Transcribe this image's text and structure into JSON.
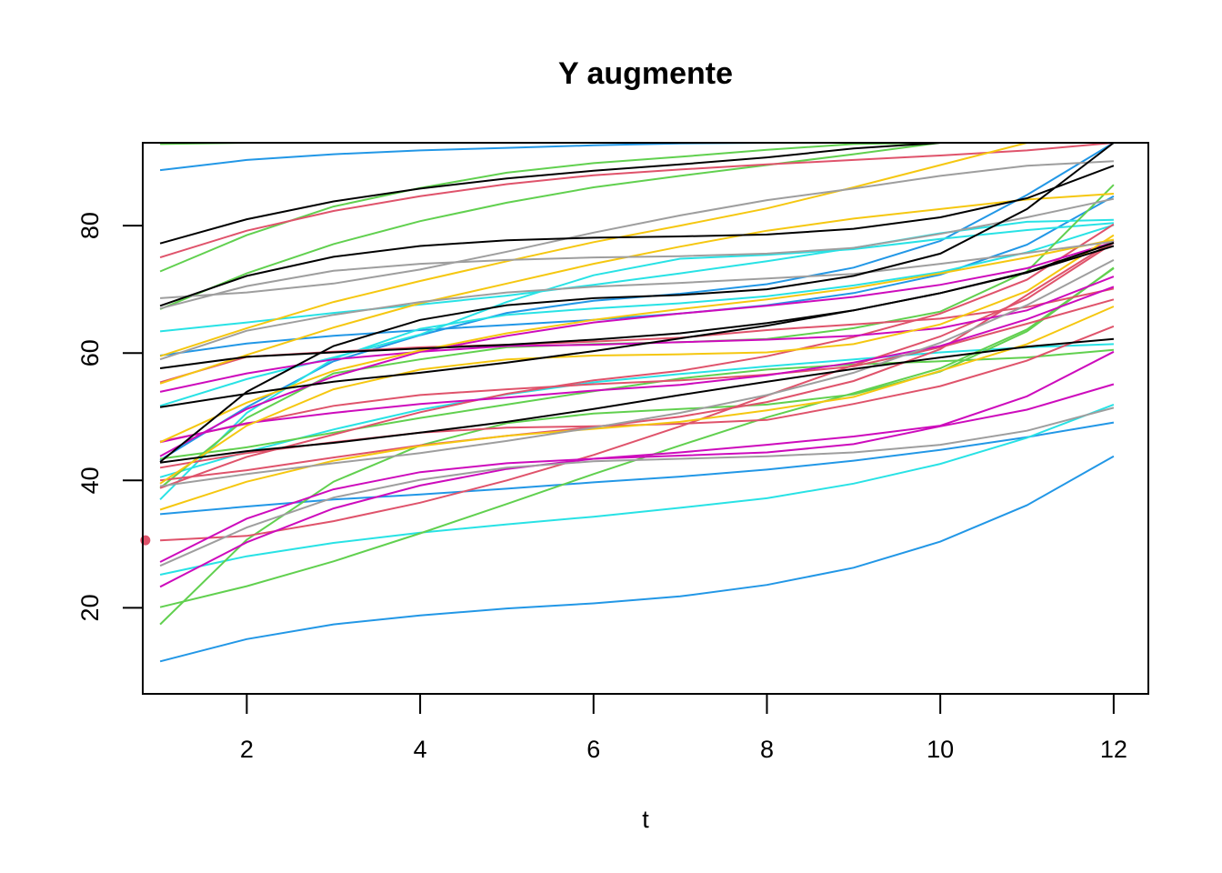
{
  "chart_data": {
    "type": "line",
    "title": "Y augmente",
    "xlabel": "t",
    "ylabel": "",
    "xlim": [
      0.8,
      12.4
    ],
    "ylim": [
      6.5,
      93
    ],
    "x": [
      1,
      2,
      3,
      4,
      5,
      6,
      7,
      8,
      9,
      10,
      11,
      12
    ],
    "x_ticks": [
      2,
      4,
      6,
      8,
      10,
      12
    ],
    "y_ticks": [
      20,
      40,
      60,
      80
    ],
    "grid": false,
    "legend": "none",
    "series": [
      {
        "color": "#2297E6",
        "values": [
          11.6,
          15.1,
          17.4,
          18.8,
          19.9,
          20.7,
          21.8,
          23.6,
          26.3,
          30.4,
          36.1,
          43.8
        ]
      },
      {
        "color": "#2297E6",
        "values": [
          34.7,
          35.9,
          37.0,
          37.8,
          38.7,
          39.7,
          40.6,
          41.7,
          43.1,
          44.8,
          46.8,
          49.1
        ]
      },
      {
        "color": "#2297E6",
        "values": [
          88.7,
          90.3,
          91.2,
          91.8,
          92.2,
          92.6,
          92.9,
          93.0,
          93.0,
          93.0,
          93.0,
          93.0
        ]
      },
      {
        "color": "#2297E6",
        "values": [
          59.6,
          61.5,
          62.7,
          63.6,
          64.4,
          65.2,
          66.2,
          67.5,
          69.4,
          72.3,
          77.0,
          84.6
        ]
      },
      {
        "color": "#2297E6",
        "values": [
          43.2,
          51.5,
          58.7,
          62.8,
          66.3,
          68.2,
          69.3,
          70.8,
          73.4,
          77.6,
          84.8,
          93.0
        ]
      },
      {
        "color": "#28E2E5",
        "values": [
          25.2,
          28.1,
          30.2,
          31.8,
          33.1,
          34.3,
          35.7,
          37.2,
          39.5,
          42.6,
          46.7,
          51.9
        ]
      },
      {
        "color": "#28E2E5",
        "values": [
          40.5,
          44.5,
          48.0,
          51.1,
          53.5,
          55.4,
          56.7,
          57.9,
          59.0,
          60.1,
          60.9,
          61.4
        ]
      },
      {
        "color": "#28E2E5",
        "values": [
          63.4,
          64.8,
          66.3,
          67.6,
          69.0,
          70.7,
          72.5,
          74.4,
          76.5,
          78.8,
          80.6,
          80.9
        ]
      },
      {
        "color": "#28E2E5",
        "values": [
          37.0,
          50.6,
          59.1,
          63.8,
          66.0,
          67.0,
          67.8,
          68.9,
          70.6,
          72.7,
          75.8,
          80.1
        ]
      },
      {
        "color": "#28E2E5",
        "values": [
          51.7,
          55.9,
          59.3,
          62.9,
          68.0,
          72.2,
          74.8,
          75.4,
          76.3,
          77.9,
          79.3,
          80.4
        ]
      },
      {
        "color": "#61D04F",
        "values": [
          20.1,
          23.4,
          27.3,
          31.7,
          36.3,
          41.0,
          45.5,
          49.9,
          53.7,
          57.6,
          63.7,
          73.3
        ]
      },
      {
        "color": "#61D04F",
        "values": [
          17.4,
          30.7,
          39.8,
          45.5,
          49.0,
          50.5,
          51.2,
          51.9,
          53.5,
          57.1,
          63.4,
          73.4
        ]
      },
      {
        "color": "#61D04F",
        "values": [
          72.8,
          78.5,
          83.0,
          85.9,
          88.3,
          89.8,
          90.8,
          91.9,
          92.8,
          93.0,
          93.0,
          93.0
        ]
      },
      {
        "color": "#61D04F",
        "values": [
          66.9,
          72.5,
          77.1,
          80.7,
          83.6,
          86.0,
          87.8,
          89.5,
          91.2,
          93.0,
          93.0,
          93.0
        ]
      },
      {
        "color": "#61D04F",
        "values": [
          38.8,
          49.8,
          56.8,
          59.0,
          60.9,
          61.4,
          61.7,
          62.2,
          63.9,
          66.5,
          72.8,
          86.4
        ]
      },
      {
        "color": "#61D04F",
        "values": [
          92.8,
          93.0,
          93.0,
          93.0,
          93.0,
          93.0,
          93.0,
          93.0,
          93.0,
          93.0,
          93.0,
          93.0
        ]
      },
      {
        "color": "#61D04F",
        "values": [
          43.4,
          45.2,
          47.5,
          49.8,
          51.9,
          54.0,
          56.0,
          57.4,
          58.2,
          58.7,
          59.3,
          60.5
        ]
      },
      {
        "color": "#DF536B",
        "values": [
          30.6,
          31.3,
          33.6,
          36.5,
          40.0,
          44.0,
          48.5,
          53.3,
          58.1,
          62.6,
          68.5,
          77.3
        ]
      },
      {
        "color": "#DF536B",
        "values": [
          38.8,
          43.7,
          47.2,
          50.7,
          53.6,
          55.7,
          57.2,
          59.5,
          62.5,
          66.2,
          71.5,
          80.2
        ]
      },
      {
        "color": "#DF536B",
        "values": [
          75.0,
          79.2,
          82.3,
          84.6,
          86.5,
          87.9,
          88.8,
          89.6,
          90.3,
          91.0,
          91.8,
          93.0
        ]
      },
      {
        "color": "#DF536B",
        "values": [
          40.0,
          41.6,
          43.6,
          45.5,
          47.0,
          48.4,
          50.0,
          52.3,
          55.6,
          60.6,
          69.1,
          77.6
        ]
      },
      {
        "color": "#DF536B",
        "values": [
          46.1,
          48.9,
          51.7,
          53.4,
          54.3,
          55.1,
          55.7,
          56.6,
          57.9,
          60.9,
          64.6,
          68.4
        ]
      },
      {
        "color": "#DF536B",
        "values": [
          42.0,
          44.3,
          46.0,
          47.5,
          48.3,
          48.5,
          48.9,
          49.5,
          52.0,
          54.8,
          58.8,
          64.2
        ]
      },
      {
        "color": "#DF536B",
        "values": [
          55.4,
          59.4,
          60.2,
          60.9,
          61.3,
          61.8,
          62.4,
          63.6,
          64.5,
          65.4,
          67.2,
          70.1
        ]
      },
      {
        "color": "#CD0BBC",
        "values": [
          23.3,
          30.3,
          35.6,
          39.2,
          41.8,
          43.4,
          44.4,
          45.6,
          46.9,
          48.6,
          53.2,
          60.2
        ]
      },
      {
        "color": "#CD0BBC",
        "values": [
          27.2,
          34.0,
          38.6,
          41.3,
          42.7,
          43.4,
          43.9,
          44.4,
          45.7,
          48.5,
          51.1,
          55.1
        ]
      },
      {
        "color": "#CD0BBC",
        "values": [
          46.0,
          49.0,
          50.6,
          52.0,
          53.0,
          54.1,
          55.0,
          56.5,
          58.5,
          61.1,
          65.3,
          70.4
        ]
      },
      {
        "color": "#CD0BBC",
        "values": [
          43.8,
          51.2,
          56.3,
          60.2,
          62.7,
          64.8,
          66.2,
          67.4,
          68.8,
          70.7,
          73.3,
          77.4
        ]
      },
      {
        "color": "#CD0BBC",
        "values": [
          53.9,
          56.8,
          59.0,
          60.2,
          61.1,
          61.3,
          61.7,
          62.1,
          62.7,
          63.9,
          66.7,
          72.0
        ]
      },
      {
        "color": "#F5C710",
        "values": [
          35.4,
          39.8,
          43.1,
          45.4,
          47.0,
          48.1,
          49.2,
          51.0,
          53.1,
          57.2,
          61.4,
          67.3
        ]
      },
      {
        "color": "#F5C710",
        "values": [
          39.5,
          48.6,
          54.3,
          57.4,
          59.0,
          59.6,
          59.8,
          60.1,
          61.4,
          64.5,
          69.7,
          78.5
        ]
      },
      {
        "color": "#F5C710",
        "values": [
          46.0,
          52.2,
          57.2,
          60.4,
          63.1,
          65.2,
          66.9,
          68.4,
          70.2,
          72.5,
          75.0,
          77.8
        ]
      },
      {
        "color": "#F5C710",
        "values": [
          55.2,
          59.7,
          64.0,
          67.8,
          70.9,
          74.0,
          76.7,
          79.2,
          81.1,
          82.6,
          84.1,
          85.0
        ]
      },
      {
        "color": "#F5C710",
        "values": [
          59.5,
          63.9,
          68.0,
          71.3,
          74.4,
          77.4,
          80.0,
          82.7,
          86.0,
          89.5,
          93.0,
          93.0
        ]
      },
      {
        "color": "#9E9E9E",
        "values": [
          26.6,
          32.6,
          37.3,
          40.1,
          42.0,
          43.0,
          43.4,
          43.8,
          44.4,
          45.6,
          47.8,
          51.4
        ]
      },
      {
        "color": "#9E9E9E",
        "values": [
          39.1,
          41.0,
          42.7,
          44.3,
          46.2,
          48.3,
          50.6,
          53.4,
          56.9,
          61.6,
          67.5,
          74.6
        ]
      },
      {
        "color": "#9E9E9E",
        "values": [
          59.0,
          63.5,
          66.0,
          68.0,
          69.5,
          70.4,
          71.0,
          71.7,
          72.4,
          74.0,
          75.7,
          77.5
        ]
      },
      {
        "color": "#9E9E9E",
        "values": [
          68.6,
          69.5,
          70.9,
          73.1,
          75.9,
          78.9,
          81.6,
          84.0,
          85.8,
          87.8,
          89.4,
          90.1
        ]
      },
      {
        "color": "#9E9E9E",
        "values": [
          67.0,
          70.5,
          72.9,
          74.0,
          74.6,
          75.0,
          75.2,
          75.6,
          76.5,
          78.7,
          81.3,
          84.2
        ]
      },
      {
        "color": "#000000",
        "values": [
          51.5,
          53.6,
          55.5,
          56.9,
          58.5,
          60.3,
          62.3,
          64.3,
          66.7,
          69.4,
          72.7,
          77.3
        ]
      },
      {
        "color": "#000000",
        "values": [
          42.8,
          44.6,
          45.9,
          47.5,
          49.2,
          51.2,
          53.4,
          55.5,
          57.5,
          59.3,
          61.0,
          62.2
        ]
      },
      {
        "color": "#000000",
        "values": [
          77.2,
          81.0,
          83.8,
          85.8,
          87.4,
          88.6,
          89.6,
          90.7,
          92.1,
          93.0,
          93.0,
          93.0
        ]
      },
      {
        "color": "#000000",
        "values": [
          67.4,
          72.1,
          75.1,
          76.8,
          77.7,
          78.1,
          78.3,
          78.6,
          79.5,
          81.3,
          84.3,
          89.4
        ]
      },
      {
        "color": "#000000",
        "values": [
          57.6,
          59.4,
          60.1,
          60.7,
          61.3,
          62.1,
          63.1,
          64.7,
          66.7,
          69.4,
          72.6,
          76.8
        ]
      },
      {
        "color": "#000000",
        "values": [
          42.9,
          53.9,
          61.1,
          65.2,
          67.5,
          68.6,
          69.1,
          70.0,
          72.1,
          75.6,
          82.6,
          93.0
        ]
      }
    ],
    "points": [
      {
        "x": 0.83,
        "y": 30.6,
        "color": "#DF536B"
      }
    ]
  }
}
